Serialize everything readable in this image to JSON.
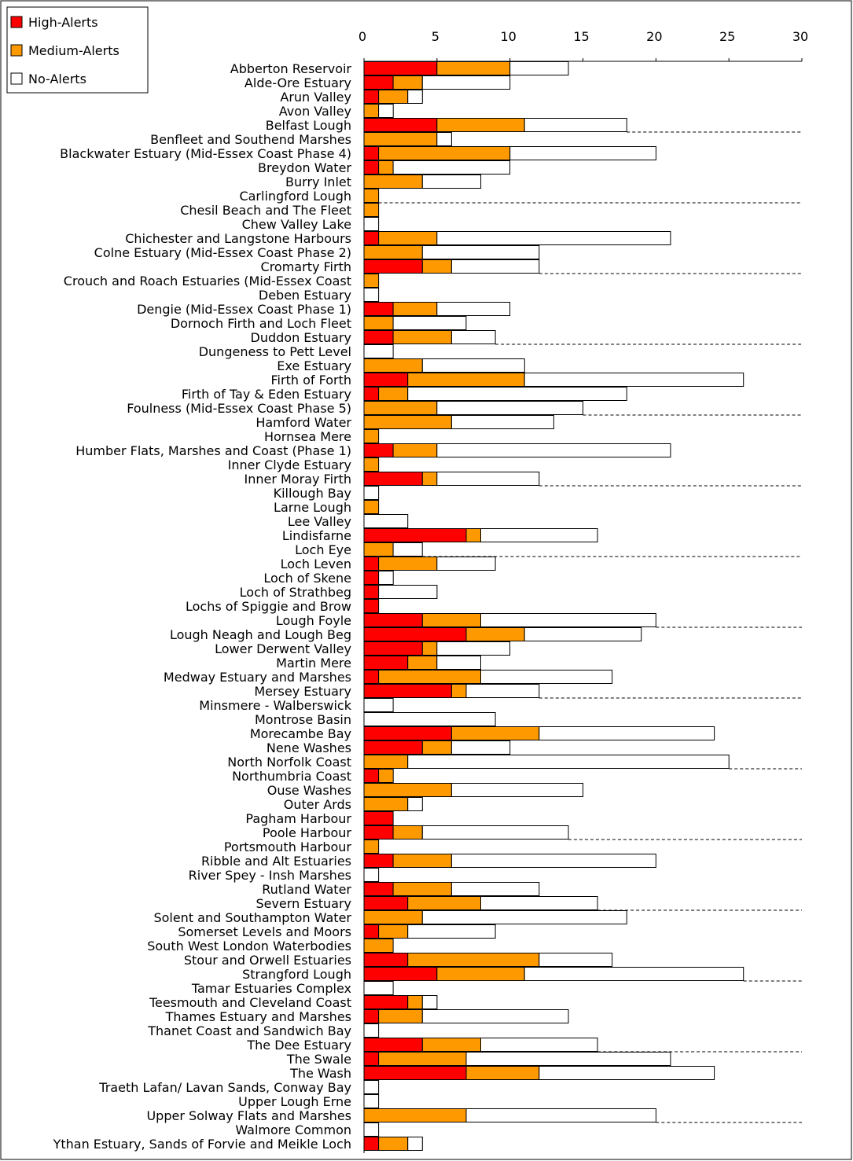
{
  "chart_data": {
    "type": "bar",
    "orientation": "horizontal",
    "stacked": true,
    "xlim": [
      0,
      30
    ],
    "x_ticks": [
      "0",
      "5",
      "10",
      "15",
      "20",
      "25",
      "30"
    ],
    "x_tick_values": [
      0,
      5,
      10,
      15,
      20,
      25,
      30
    ],
    "axis_position": "top",
    "legend_position": "top-left",
    "series": [
      {
        "name": "High-Alerts",
        "color": "#ff0000"
      },
      {
        "name": "Medium-Alerts",
        "color": "#ff9900"
      },
      {
        "name": "No-Alerts",
        "color": "#ffffff"
      }
    ],
    "categories": [
      "Abberton Reservoir",
      "Alde-Ore Estuary",
      "Arun Valley",
      "Avon Valley",
      "Belfast Lough",
      "Benfleet and Southend Marshes",
      "Blackwater Estuary (Mid-Essex Coast Phase 4)",
      "Breydon Water",
      "Burry Inlet",
      "Carlingford Lough",
      "Chesil Beach and The Fleet",
      "Chew Valley Lake",
      "Chichester and Langstone Harbours",
      "Colne Estuary (Mid-Essex Coast Phase 2)",
      "Cromarty Firth",
      "Crouch and Roach Estuaries (Mid-Essex Coast",
      "Deben Estuary",
      "Dengie (Mid-Essex Coast Phase 1)",
      "Dornoch Firth and Loch Fleet",
      "Duddon Estuary",
      "Dungeness to Pett Level",
      "Exe Estuary",
      "Firth of Forth",
      "Firth of Tay & Eden Estuary",
      "Foulness (Mid-Essex Coast Phase 5)",
      "Hamford Water",
      "Hornsea Mere",
      "Humber Flats, Marshes and Coast (Phase 1)",
      "Inner Clyde Estuary",
      "Inner Moray Firth",
      "Killough Bay",
      "Larne Lough",
      "Lee Valley",
      "Lindisfarne",
      "Loch Eye",
      "Loch Leven",
      "Loch of Skene",
      "Loch of Strathbeg",
      "Lochs of Spiggie and Brow",
      "Lough Foyle",
      "Lough Neagh and Lough Beg",
      "Lower Derwent Valley",
      "Martin Mere",
      "Medway Estuary and Marshes",
      "Mersey Estuary",
      "Minsmere - Walberswick",
      "Montrose Basin",
      "Morecambe Bay",
      "Nene Washes",
      "North Norfolk Coast",
      "Northumbria Coast",
      "Ouse Washes",
      "Outer Ards",
      "Pagham Harbour",
      "Poole Harbour",
      "Portsmouth Harbour",
      "Ribble and Alt Estuaries",
      "River Spey - Insh Marshes",
      "Rutland Water",
      "Severn Estuary",
      "Solent and Southampton Water",
      "Somerset Levels and Moors",
      "South West London Waterbodies",
      "Stour and Orwell Estuaries",
      "Strangford Lough",
      "Tamar Estuaries Complex",
      "Teesmouth and Cleveland Coast",
      "Thames Estuary and Marshes",
      "Thanet Coast and Sandwich Bay",
      "The Dee Estuary",
      "The Swale",
      "The Wash",
      "Traeth Lafan/ Lavan Sands, Conway Bay",
      "Upper Lough Erne",
      "Upper Solway Flats and Marshes",
      "Walmore Common",
      "Ythan Estuary, Sands of Forvie and Meikle Loch"
    ],
    "values": [
      [
        5,
        5,
        4
      ],
      [
        2,
        2,
        6
      ],
      [
        1,
        2,
        1
      ],
      [
        0,
        1,
        1
      ],
      [
        5,
        6,
        7
      ],
      [
        0,
        5,
        1
      ],
      [
        1,
        9,
        10
      ],
      [
        1,
        1,
        8
      ],
      [
        0,
        4,
        4
      ],
      [
        0,
        1,
        0
      ],
      [
        0,
        1,
        0
      ],
      [
        0,
        0,
        1
      ],
      [
        1,
        4,
        16
      ],
      [
        0,
        4,
        8
      ],
      [
        4,
        2,
        6
      ],
      [
        0,
        1,
        0
      ],
      [
        0,
        0,
        1
      ],
      [
        2,
        3,
        5
      ],
      [
        0,
        2,
        5
      ],
      [
        2,
        4,
        3
      ],
      [
        0,
        0,
        2
      ],
      [
        0,
        4,
        7
      ],
      [
        3,
        8,
        15
      ],
      [
        1,
        2,
        15
      ],
      [
        0,
        5,
        10
      ],
      [
        0,
        6,
        7
      ],
      [
        0,
        1,
        0
      ],
      [
        2,
        3,
        16
      ],
      [
        0,
        1,
        0
      ],
      [
        4,
        1,
        7
      ],
      [
        0,
        0,
        1
      ],
      [
        0,
        1,
        0
      ],
      [
        0,
        0,
        3
      ],
      [
        7,
        1,
        8
      ],
      [
        0,
        2,
        2
      ],
      [
        1,
        4,
        4
      ],
      [
        1,
        0,
        1
      ],
      [
        1,
        0,
        4
      ],
      [
        1,
        0,
        0
      ],
      [
        4,
        4,
        12
      ],
      [
        7,
        4,
        8
      ],
      [
        4,
        1,
        5
      ],
      [
        3,
        2,
        3
      ],
      [
        1,
        7,
        9
      ],
      [
        6,
        1,
        5
      ],
      [
        0,
        0,
        2
      ],
      [
        0,
        0,
        9
      ],
      [
        6,
        6,
        12
      ],
      [
        4,
        2,
        4
      ],
      [
        0,
        3,
        22
      ],
      [
        1,
        1,
        0
      ],
      [
        0,
        6,
        9
      ],
      [
        0,
        3,
        1
      ],
      [
        2,
        0,
        0
      ],
      [
        2,
        2,
        10
      ],
      [
        0,
        1,
        0
      ],
      [
        2,
        4,
        14
      ],
      [
        0,
        0,
        1
      ],
      [
        2,
        4,
        6
      ],
      [
        3,
        5,
        8
      ],
      [
        0,
        4,
        14
      ],
      [
        1,
        2,
        6
      ],
      [
        0,
        2,
        0
      ],
      [
        3,
        9,
        5
      ],
      [
        5,
        6,
        15
      ],
      [
        0,
        0,
        2
      ],
      [
        3,
        1,
        1
      ],
      [
        1,
        3,
        10
      ],
      [
        0,
        0,
        1
      ],
      [
        4,
        4,
        8
      ],
      [
        1,
        6,
        14
      ],
      [
        7,
        5,
        12
      ],
      [
        0,
        0,
        1
      ],
      [
        0,
        0,
        1
      ],
      [
        0,
        7,
        13
      ],
      [
        0,
        0,
        1
      ],
      [
        1,
        2,
        1
      ]
    ]
  }
}
